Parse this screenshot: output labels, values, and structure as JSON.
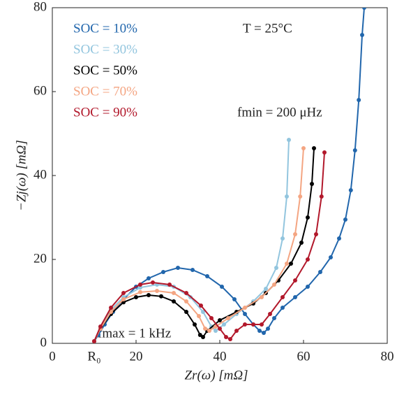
{
  "chart_data": {
    "type": "line",
    "xlabel": "Zr(ω) [mΩ]",
    "ylabel": "−Zj(ω) [mΩ]",
    "annotations": [
      "T = 25°C",
      "fmin = 200 μHz",
      "fmax = 1 kHz"
    ],
    "xlim": [
      0,
      80
    ],
    "ylim": [
      0,
      80
    ],
    "xticks": [
      0,
      {
        "value": 10,
        "label": "R₀"
      },
      20,
      40,
      60,
      80
    ],
    "yticks": [
      0,
      20,
      40,
      60,
      80
    ],
    "legend": "upper-left",
    "series": [
      {
        "name": "SOC = 10%",
        "color": "#2166ac",
        "x": [
          10,
          11,
          12.5,
          14.5,
          17,
          20,
          23,
          26.5,
          30,
          33.5,
          37,
          40.5,
          43.5,
          46,
          48,
          49.5,
          50.5,
          51.5,
          53,
          55,
          58,
          61,
          64,
          66.5,
          68.5,
          70,
          71.3,
          72.3,
          73.2,
          74,
          74.5
        ],
        "values": [
          0.5,
          2,
          4.5,
          7.5,
          10.5,
          13.5,
          15.5,
          17,
          18,
          17.5,
          16,
          13.5,
          10.5,
          7,
          4.5,
          3,
          2.5,
          3.5,
          6,
          8.5,
          11,
          13.5,
          17,
          20.5,
          25,
          29.5,
          36.5,
          46,
          58,
          73.5,
          80
        ]
      },
      {
        "name": "SOC = 30%",
        "color": "#92c5de",
        "x": [
          10,
          11.5,
          14,
          17,
          21,
          25,
          29,
          33,
          36,
          38,
          39,
          41,
          44,
          48,
          51,
          53.5,
          55,
          56,
          56.5
        ],
        "values": [
          0.5,
          4,
          8,
          11,
          13.3,
          14,
          13.5,
          11,
          7.5,
          4,
          3,
          4.5,
          7,
          10,
          13,
          18,
          25,
          35,
          48.5
        ]
      },
      {
        "name": "SOC = 50%",
        "color": "#000000",
        "x": [
          10,
          11.5,
          14,
          17,
          20,
          23,
          26,
          29,
          32,
          34,
          35.3,
          36,
          37,
          40,
          44,
          48,
          51,
          54,
          57,
          59.5,
          61,
          62,
          62.5
        ],
        "values": [
          0.5,
          3.5,
          7,
          9.8,
          11,
          11.5,
          11.2,
          10,
          7.5,
          4.5,
          2,
          1.5,
          3,
          5.5,
          7.5,
          9.5,
          12,
          15,
          19,
          24,
          30,
          38,
          46.5
        ]
      },
      {
        "name": "SOC = 70%",
        "color": "#f4a582",
        "x": [
          10,
          11.5,
          14,
          17,
          21,
          25,
          29,
          32,
          35,
          36.5,
          37.5,
          39,
          42,
          46,
          50,
          53,
          56,
          58,
          59.2,
          60
        ],
        "values": [
          0.5,
          3.5,
          7.5,
          10.5,
          12.2,
          12.5,
          12,
          10,
          6.5,
          3.5,
          3,
          4,
          6,
          8.5,
          11,
          14,
          19,
          26,
          35,
          46.5
        ]
      },
      {
        "name": "SOC = 90%",
        "color": "#b2182b",
        "x": [
          10,
          11.5,
          14,
          17,
          21,
          24,
          28,
          32,
          35.5,
          38,
          40,
          41.5,
          42.5,
          44,
          46,
          48,
          50,
          52,
          55,
          58,
          61,
          63,
          64.3,
          65
        ],
        "values": [
          0.5,
          4,
          8.5,
          12,
          14,
          14.5,
          14,
          12,
          9,
          6,
          3.5,
          1.5,
          1,
          3,
          4.5,
          4.5,
          4.5,
          7,
          11,
          15,
          20,
          26,
          35,
          45.5
        ]
      }
    ]
  }
}
